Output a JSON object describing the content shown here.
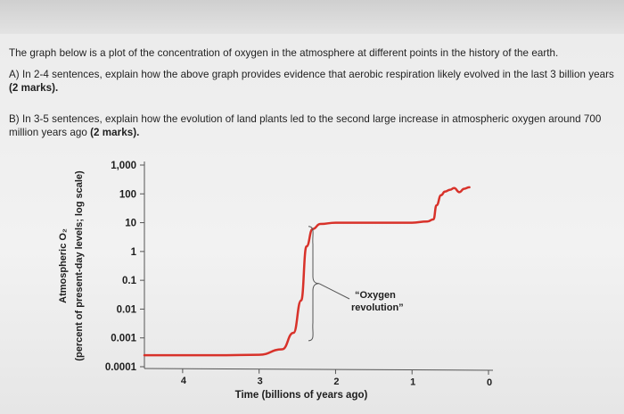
{
  "question": {
    "intro": "The graph below is a plot of the concentration of oxygen in the atmosphere at different points in the history of the earth.",
    "part_a_text": "A)   In 2-4 sentences, explain how the above graph provides evidence that aerobic respiration likely evolved in the last 3 billion years ",
    "part_a_marks": "(2 marks).",
    "part_b_text": "B)   In 3-5 sentences, explain how the evolution of land plants led to the second large increase in atmospheric oxygen around 700 million years ago ",
    "part_b_marks": "(2 marks)."
  },
  "colors": {
    "curve": "#d8322a",
    "axis": "#555555",
    "text": "#1e1e1e"
  },
  "chart_data": {
    "type": "line",
    "title": "",
    "xlabel": "Time (billions of years ago)",
    "ylabel_line1": "Atmospheric O₂",
    "ylabel_line2": "(percent of present-day levels; log scale)",
    "y_scale": "log",
    "ylim": [
      0.0001,
      1000
    ],
    "xlim": [
      4.5,
      0
    ],
    "x_ticks": [
      {
        "value": 4,
        "label": "4"
      },
      {
        "value": 3,
        "label": "3"
      },
      {
        "value": 2,
        "label": "2"
      },
      {
        "value": 1,
        "label": "1"
      },
      {
        "value": 0,
        "label": "0"
      }
    ],
    "y_ticks": [
      {
        "value": 1000,
        "label": "1,000"
      },
      {
        "value": 100,
        "label": "100"
      },
      {
        "value": 10,
        "label": "10"
      },
      {
        "value": 1,
        "label": "1"
      },
      {
        "value": 0.1,
        "label": "0.1"
      },
      {
        "value": 0.01,
        "label": "0.01"
      },
      {
        "value": 0.001,
        "label": "0.001"
      },
      {
        "value": 0.0001,
        "label": "0.0001"
      }
    ],
    "series": [
      {
        "x": [
          4.5,
          3.5,
          3.0,
          2.7,
          2.55,
          2.45,
          2.38,
          2.3,
          2.2,
          2.0,
          1.5,
          1.0,
          0.8,
          0.72,
          0.68,
          0.62,
          0.57,
          0.5,
          0.45,
          0.38,
          0.32,
          0.25
        ],
        "y": [
          0.00025,
          0.00025,
          0.00026,
          0.0004,
          0.0015,
          0.02,
          1.5,
          6,
          9,
          10,
          10,
          10,
          11,
          13,
          40,
          90,
          120,
          140,
          160,
          115,
          150,
          170
        ]
      }
    ],
    "annotations": [
      {
        "text_line1": "“Oxygen",
        "text_line2": "revolution”"
      }
    ]
  }
}
